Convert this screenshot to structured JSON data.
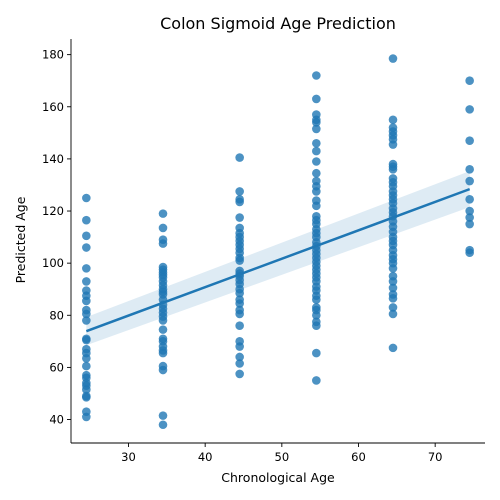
{
  "chart_data": {
    "type": "scatter",
    "title": "Colon Sigmoid Age Prediction",
    "xlabel": "Chronological Age",
    "ylabel": "Predicted Age",
    "xlim": [
      22.5,
      76.5
    ],
    "ylim": [
      31,
      186
    ],
    "xticks": [
      30,
      40,
      50,
      60,
      70
    ],
    "yticks": [
      40,
      60,
      80,
      100,
      120,
      140,
      160,
      180
    ],
    "grid": false,
    "legend": "none",
    "colors": {
      "point": "#1f77b4",
      "line": "#1f77b4",
      "band": "#1f77b4"
    },
    "regression": {
      "x": [
        24.5,
        74.5
      ],
      "y": [
        73.9,
        128.4
      ],
      "ci_lower": [
        68.5,
        121.5
      ],
      "ci_upper": [
        79.3,
        135.3
      ]
    },
    "points": [
      {
        "x": 24.5,
        "y": 125
      },
      {
        "x": 24.5,
        "y": 116.5
      },
      {
        "x": 24.5,
        "y": 110.5
      },
      {
        "x": 24.5,
        "y": 106
      },
      {
        "x": 24.5,
        "y": 98
      },
      {
        "x": 24.5,
        "y": 93
      },
      {
        "x": 24.5,
        "y": 89.5
      },
      {
        "x": 24.5,
        "y": 87.5
      },
      {
        "x": 24.5,
        "y": 85.5
      },
      {
        "x": 24.5,
        "y": 82
      },
      {
        "x": 24.5,
        "y": 80.5
      },
      {
        "x": 24.5,
        "y": 78
      },
      {
        "x": 24.5,
        "y": 71
      },
      {
        "x": 24.5,
        "y": 70.5
      },
      {
        "x": 24.5,
        "y": 67
      },
      {
        "x": 24.5,
        "y": 65.5
      },
      {
        "x": 24.5,
        "y": 63.5
      },
      {
        "x": 24.5,
        "y": 60.5
      },
      {
        "x": 24.5,
        "y": 57
      },
      {
        "x": 24.5,
        "y": 56
      },
      {
        "x": 24.5,
        "y": 54
      },
      {
        "x": 24.5,
        "y": 53
      },
      {
        "x": 24.5,
        "y": 51.5
      },
      {
        "x": 24.5,
        "y": 49
      },
      {
        "x": 24.5,
        "y": 48.5
      },
      {
        "x": 24.5,
        "y": 43
      },
      {
        "x": 24.5,
        "y": 41
      },
      {
        "x": 34.5,
        "y": 119
      },
      {
        "x": 34.5,
        "y": 113.5
      },
      {
        "x": 34.5,
        "y": 109
      },
      {
        "x": 34.5,
        "y": 107.5
      },
      {
        "x": 34.5,
        "y": 98.5
      },
      {
        "x": 34.5,
        "y": 97.5
      },
      {
        "x": 34.5,
        "y": 96.5
      },
      {
        "x": 34.5,
        "y": 95.5
      },
      {
        "x": 34.5,
        "y": 94.5
      },
      {
        "x": 34.5,
        "y": 93
      },
      {
        "x": 34.5,
        "y": 91.5
      },
      {
        "x": 34.5,
        "y": 90
      },
      {
        "x": 34.5,
        "y": 89
      },
      {
        "x": 34.5,
        "y": 88
      },
      {
        "x": 34.5,
        "y": 86
      },
      {
        "x": 34.5,
        "y": 84
      },
      {
        "x": 34.5,
        "y": 82.5
      },
      {
        "x": 34.5,
        "y": 81
      },
      {
        "x": 34.5,
        "y": 79.5
      },
      {
        "x": 34.5,
        "y": 78
      },
      {
        "x": 34.5,
        "y": 74.5
      },
      {
        "x": 34.5,
        "y": 71
      },
      {
        "x": 34.5,
        "y": 70
      },
      {
        "x": 34.5,
        "y": 68
      },
      {
        "x": 34.5,
        "y": 66.5
      },
      {
        "x": 34.5,
        "y": 65.5
      },
      {
        "x": 34.5,
        "y": 60.5
      },
      {
        "x": 34.5,
        "y": 59
      },
      {
        "x": 34.5,
        "y": 41.5
      },
      {
        "x": 34.5,
        "y": 38
      },
      {
        "x": 44.5,
        "y": 140.5
      },
      {
        "x": 44.5,
        "y": 127.5
      },
      {
        "x": 44.5,
        "y": 124.5
      },
      {
        "x": 44.5,
        "y": 123.5
      },
      {
        "x": 44.5,
        "y": 117.5
      },
      {
        "x": 44.5,
        "y": 113.5
      },
      {
        "x": 44.5,
        "y": 111.5
      },
      {
        "x": 44.5,
        "y": 110
      },
      {
        "x": 44.5,
        "y": 108.5
      },
      {
        "x": 44.5,
        "y": 107
      },
      {
        "x": 44.5,
        "y": 105.5
      },
      {
        "x": 44.5,
        "y": 104
      },
      {
        "x": 44.5,
        "y": 102
      },
      {
        "x": 44.5,
        "y": 101
      },
      {
        "x": 44.5,
        "y": 97
      },
      {
        "x": 44.5,
        "y": 96
      },
      {
        "x": 44.5,
        "y": 95
      },
      {
        "x": 44.5,
        "y": 93.5
      },
      {
        "x": 44.5,
        "y": 92
      },
      {
        "x": 44.5,
        "y": 90
      },
      {
        "x": 44.5,
        "y": 88.5
      },
      {
        "x": 44.5,
        "y": 86
      },
      {
        "x": 44.5,
        "y": 84.5
      },
      {
        "x": 44.5,
        "y": 82
      },
      {
        "x": 44.5,
        "y": 80.5
      },
      {
        "x": 44.5,
        "y": 76
      },
      {
        "x": 44.5,
        "y": 70
      },
      {
        "x": 44.5,
        "y": 68
      },
      {
        "x": 44.5,
        "y": 64
      },
      {
        "x": 44.5,
        "y": 61.5
      },
      {
        "x": 44.5,
        "y": 57.5
      },
      {
        "x": 54.5,
        "y": 172
      },
      {
        "x": 54.5,
        "y": 163
      },
      {
        "x": 54.5,
        "y": 157
      },
      {
        "x": 54.5,
        "y": 155
      },
      {
        "x": 54.5,
        "y": 154
      },
      {
        "x": 54.5,
        "y": 151.5
      },
      {
        "x": 54.5,
        "y": 146
      },
      {
        "x": 54.5,
        "y": 143
      },
      {
        "x": 54.5,
        "y": 139
      },
      {
        "x": 54.5,
        "y": 134.5
      },
      {
        "x": 54.5,
        "y": 131.5
      },
      {
        "x": 54.5,
        "y": 129.5
      },
      {
        "x": 54.5,
        "y": 127.5
      },
      {
        "x": 54.5,
        "y": 124
      },
      {
        "x": 54.5,
        "y": 122
      },
      {
        "x": 54.5,
        "y": 118
      },
      {
        "x": 54.5,
        "y": 116.5
      },
      {
        "x": 54.5,
        "y": 115
      },
      {
        "x": 54.5,
        "y": 113
      },
      {
        "x": 54.5,
        "y": 111.5
      },
      {
        "x": 54.5,
        "y": 110
      },
      {
        "x": 54.5,
        "y": 108
      },
      {
        "x": 54.5,
        "y": 106.5
      },
      {
        "x": 54.5,
        "y": 105
      },
      {
        "x": 54.5,
        "y": 103.5
      },
      {
        "x": 54.5,
        "y": 102
      },
      {
        "x": 54.5,
        "y": 100.5
      },
      {
        "x": 54.5,
        "y": 99
      },
      {
        "x": 54.5,
        "y": 97.5
      },
      {
        "x": 54.5,
        "y": 96
      },
      {
        "x": 54.5,
        "y": 94.5
      },
      {
        "x": 54.5,
        "y": 93
      },
      {
        "x": 54.5,
        "y": 91
      },
      {
        "x": 54.5,
        "y": 89.5
      },
      {
        "x": 54.5,
        "y": 87.5
      },
      {
        "x": 54.5,
        "y": 86
      },
      {
        "x": 54.5,
        "y": 83
      },
      {
        "x": 54.5,
        "y": 82
      },
      {
        "x": 54.5,
        "y": 80
      },
      {
        "x": 54.5,
        "y": 77.5
      },
      {
        "x": 54.5,
        "y": 76
      },
      {
        "x": 54.5,
        "y": 65.5
      },
      {
        "x": 54.5,
        "y": 55
      },
      {
        "x": 64.5,
        "y": 178.5
      },
      {
        "x": 64.5,
        "y": 155
      },
      {
        "x": 64.5,
        "y": 152
      },
      {
        "x": 64.5,
        "y": 150.5
      },
      {
        "x": 64.5,
        "y": 149
      },
      {
        "x": 64.5,
        "y": 147.5
      },
      {
        "x": 64.5,
        "y": 145.5
      },
      {
        "x": 64.5,
        "y": 138
      },
      {
        "x": 64.5,
        "y": 137
      },
      {
        "x": 64.5,
        "y": 136
      },
      {
        "x": 64.5,
        "y": 132.5
      },
      {
        "x": 64.5,
        "y": 131
      },
      {
        "x": 64.5,
        "y": 129.5
      },
      {
        "x": 64.5,
        "y": 127.5
      },
      {
        "x": 64.5,
        "y": 126
      },
      {
        "x": 64.5,
        "y": 124.5
      },
      {
        "x": 64.5,
        "y": 123
      },
      {
        "x": 64.5,
        "y": 121
      },
      {
        "x": 64.5,
        "y": 119.5
      },
      {
        "x": 64.5,
        "y": 118
      },
      {
        "x": 64.5,
        "y": 116
      },
      {
        "x": 64.5,
        "y": 114
      },
      {
        "x": 64.5,
        "y": 112
      },
      {
        "x": 64.5,
        "y": 110
      },
      {
        "x": 64.5,
        "y": 108.5
      },
      {
        "x": 64.5,
        "y": 107
      },
      {
        "x": 64.5,
        "y": 105
      },
      {
        "x": 64.5,
        "y": 103
      },
      {
        "x": 64.5,
        "y": 101.5
      },
      {
        "x": 64.5,
        "y": 100
      },
      {
        "x": 64.5,
        "y": 98
      },
      {
        "x": 64.5,
        "y": 95
      },
      {
        "x": 64.5,
        "y": 93
      },
      {
        "x": 64.5,
        "y": 90.5
      },
      {
        "x": 64.5,
        "y": 88
      },
      {
        "x": 64.5,
        "y": 86.5
      },
      {
        "x": 64.5,
        "y": 83
      },
      {
        "x": 64.5,
        "y": 80.5
      },
      {
        "x": 64.5,
        "y": 67.5
      },
      {
        "x": 74.5,
        "y": 170
      },
      {
        "x": 74.5,
        "y": 159
      },
      {
        "x": 74.5,
        "y": 147
      },
      {
        "x": 74.5,
        "y": 136
      },
      {
        "x": 74.5,
        "y": 131.5
      },
      {
        "x": 74.5,
        "y": 124.5
      },
      {
        "x": 74.5,
        "y": 120
      },
      {
        "x": 74.5,
        "y": 117.5
      },
      {
        "x": 74.5,
        "y": 115
      },
      {
        "x": 74.5,
        "y": 105
      },
      {
        "x": 74.5,
        "y": 104
      }
    ]
  }
}
